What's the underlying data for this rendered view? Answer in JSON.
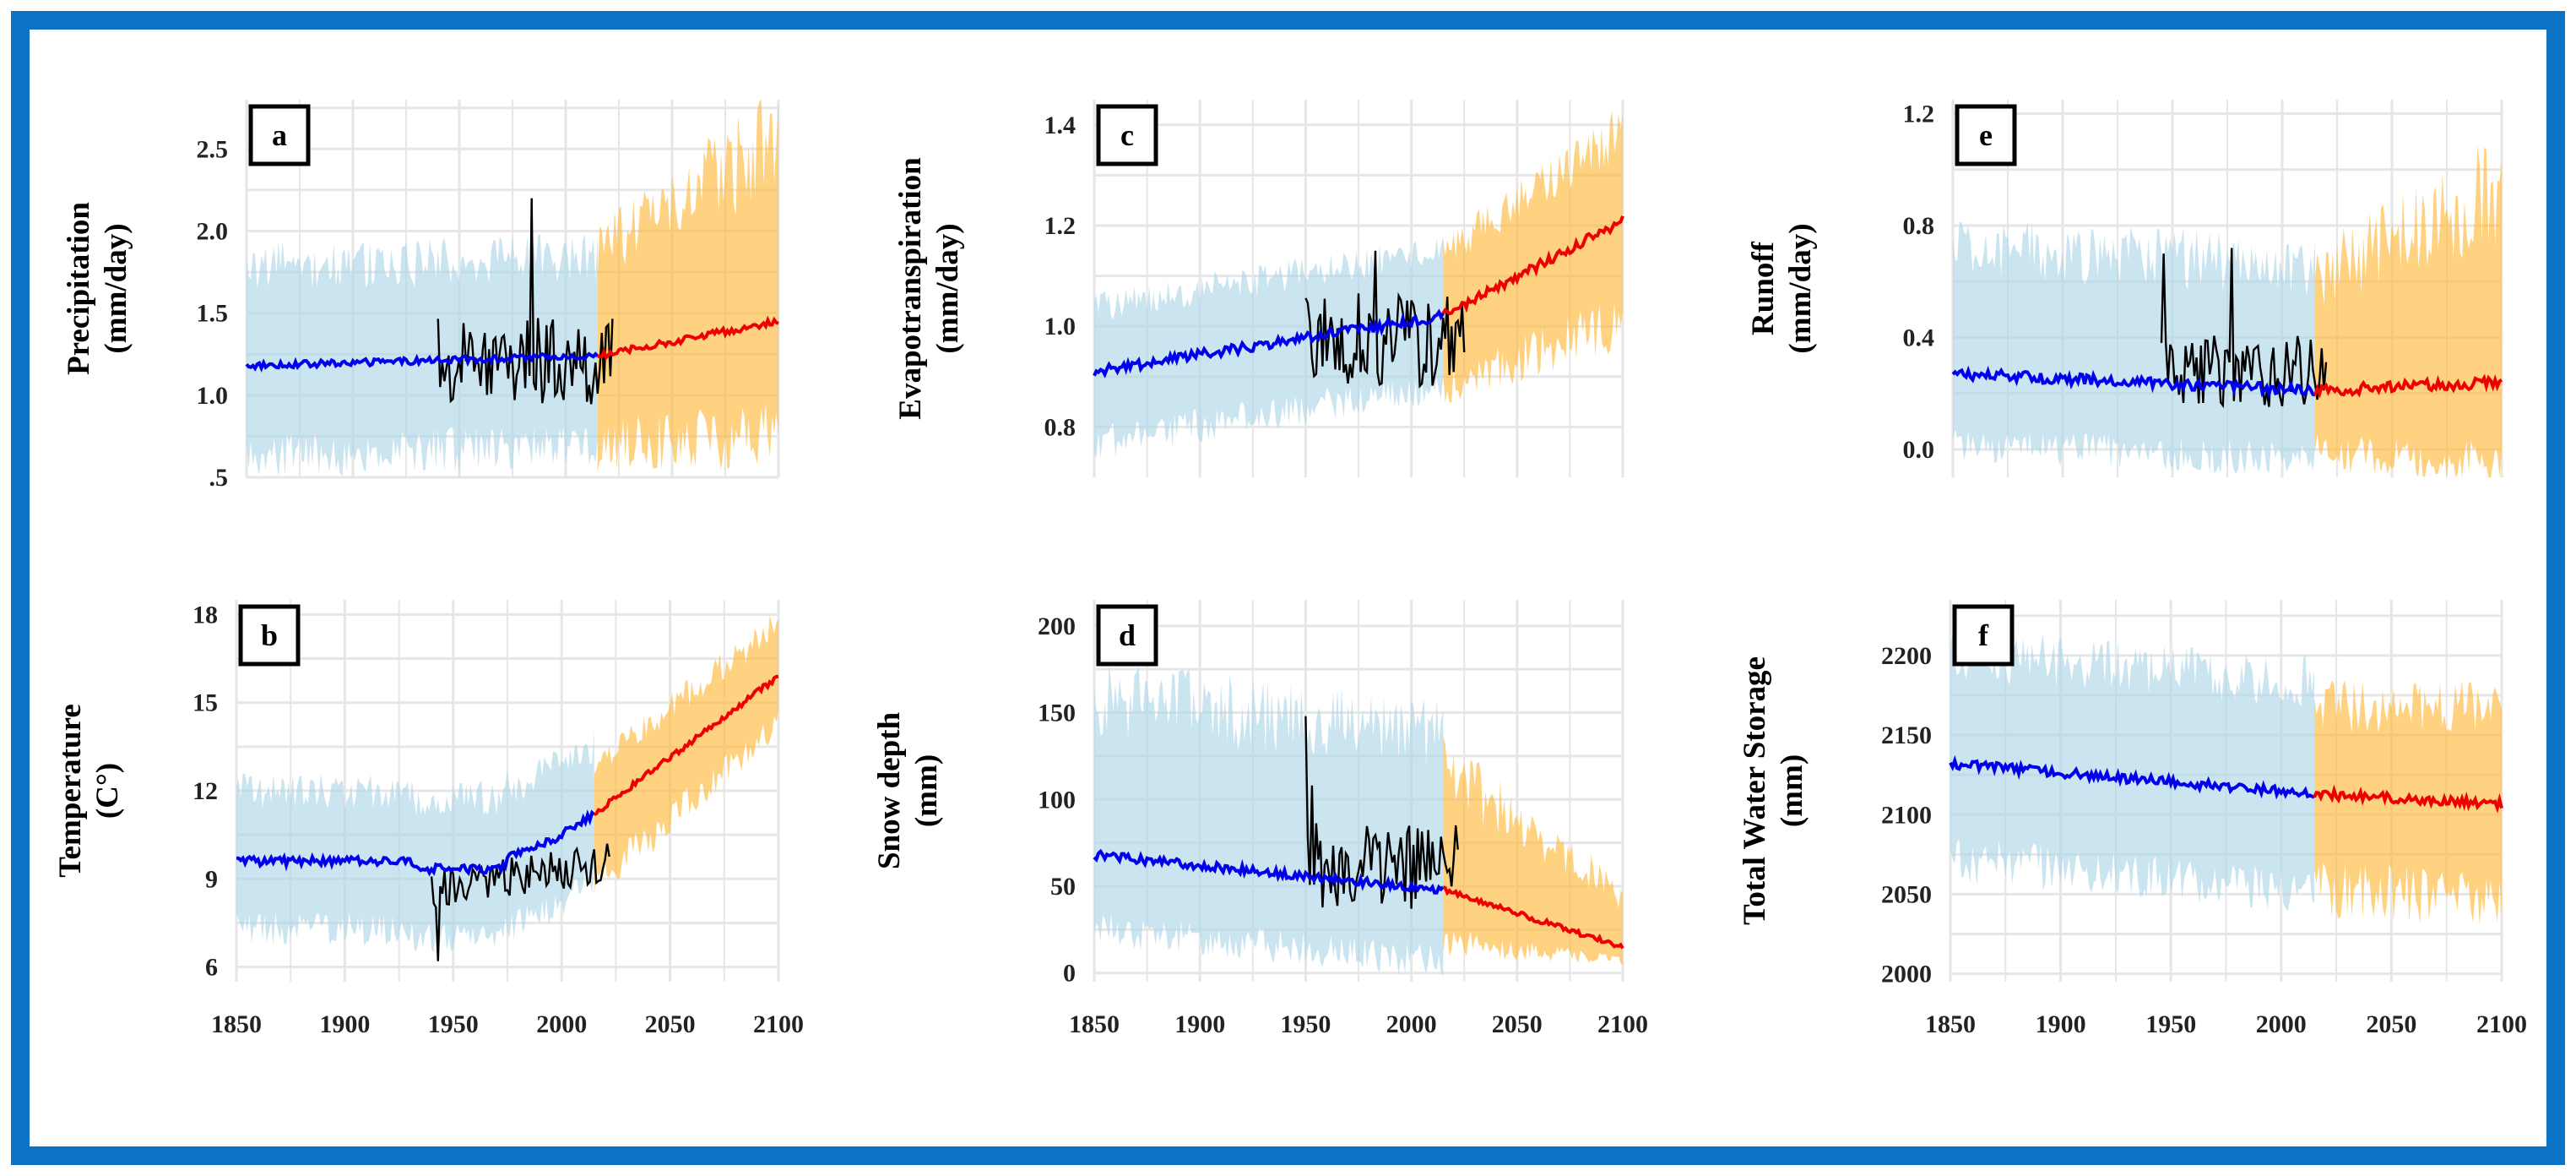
{
  "figure": {
    "frame_color": "#0b72c4",
    "colors": {
      "historical_line": "#0000ee",
      "future_line": "#ee0000",
      "observed_line": "#000000",
      "historical_band": "#a9d4e6",
      "future_band": "#ffb733",
      "grid": "#e6e6e6"
    }
  },
  "chart_data": [
    {
      "id": "a",
      "type": "line",
      "panel_label": "a",
      "ylabel": [
        "Precipitation",
        "(mm/day)"
      ],
      "xlim": [
        1850,
        2100
      ],
      "ylim": [
        0.5,
        2.8
      ],
      "xticks": [],
      "yticks": [
        {
          "v": 0.5,
          "label": ".5"
        },
        {
          "v": 1.0,
          "label": "1.0"
        },
        {
          "v": 1.5,
          "label": "1.5"
        },
        {
          "v": 2.0,
          "label": "2.0"
        },
        {
          "v": 2.5,
          "label": "2.5"
        }
      ],
      "hist": {
        "x0": 1850,
        "x1": 2015,
        "y0": 1.18,
        "y1": 1.24,
        "band_lo": 0.55,
        "band_hi": 0.6,
        "noise": 0.02
      },
      "fut": {
        "x0": 2015,
        "x1": 2100,
        "y0": 1.24,
        "y1": 1.45,
        "band_lo_start": 0.55,
        "band_lo_end": 0.7,
        "band_hi_start": 0.65,
        "band_hi_end": 1.1,
        "noise": 0.02
      },
      "obs": {
        "x0": 1940,
        "x1": 2022,
        "mean": 1.2,
        "amp": 0.28,
        "spikes": [
          [
            1984,
            2.2
          ]
        ]
      }
    },
    {
      "id": "c",
      "type": "line",
      "panel_label": "c",
      "ylabel": [
        "Evapotranspiration",
        "(mm/day)"
      ],
      "xlim": [
        1850,
        2100
      ],
      "ylim": [
        0.7,
        1.45
      ],
      "xticks": [],
      "yticks": [
        {
          "v": 0.8,
          "label": "0.8"
        },
        {
          "v": 1.0,
          "label": "1.0"
        },
        {
          "v": 1.2,
          "label": "1.2"
        },
        {
          "v": 1.4,
          "label": "1.4"
        }
      ],
      "hist": {
        "x0": 1850,
        "x1": 2015,
        "y0": 0.91,
        "y1": 1.02,
        "band_lo": 0.14,
        "band_hi": 0.13,
        "noise": 0.01
      },
      "fut": {
        "x0": 2015,
        "x1": 2100,
        "y0": 1.02,
        "y1": 1.21,
        "band_lo_start": 0.14,
        "band_lo_end": 0.2,
        "band_hi_start": 0.13,
        "band_hi_end": 0.18,
        "noise": 0.01
      },
      "obs": {
        "x0": 1950,
        "x1": 2025,
        "mean": 0.97,
        "amp": 0.1,
        "spikes": [
          [
            1983,
            1.15
          ]
        ]
      }
    },
    {
      "id": "e",
      "type": "line",
      "panel_label": "e",
      "ylabel": [
        "Runoff",
        "(mm/day)"
      ],
      "xlim": [
        1850,
        2100
      ],
      "ylim": [
        -0.1,
        1.25
      ],
      "xticks": [],
      "yticks": [
        {
          "v": 0.0,
          "label": "0.0"
        },
        {
          "v": 0.4,
          "label": "0.4"
        },
        {
          "v": 0.8,
          "label": "0.8"
        },
        {
          "v": 1.2,
          "label": "1.2"
        }
      ],
      "hist": {
        "x0": 1850,
        "x1": 2015,
        "y0": 0.27,
        "y1": 0.21,
        "band_lo": 0.25,
        "band_hi": 0.45,
        "noise": 0.02
      },
      "fut": {
        "x0": 2015,
        "x1": 2100,
        "y0": 0.21,
        "y1": 0.24,
        "band_lo_start": 0.22,
        "band_lo_end": 0.3,
        "band_hi_start": 0.4,
        "band_hi_end": 0.7,
        "noise": 0.02
      },
      "obs": {
        "x0": 1945,
        "x1": 2020,
        "mean": 0.28,
        "amp": 0.13,
        "spikes": [
          [
            1946,
            0.7
          ],
          [
            1977,
            0.72
          ]
        ]
      }
    },
    {
      "id": "b",
      "type": "line",
      "panel_label": "b",
      "ylabel": [
        "Temperature",
        "(C°)"
      ],
      "xlim": [
        1850,
        2100
      ],
      "ylim": [
        5.5,
        18.5
      ],
      "xticks": [
        1850,
        1900,
        1950,
        2000,
        2050,
        2100
      ],
      "yticks": [
        {
          "v": 6,
          "label": "6"
        },
        {
          "v": 9,
          "label": "9"
        },
        {
          "v": 12,
          "label": "12"
        },
        {
          "v": 15,
          "label": "15"
        },
        {
          "v": 18,
          "label": "18"
        }
      ],
      "hist": {
        "x0": 1850,
        "x1": 2015,
        "y0": 9.6,
        "y1": 11.2,
        "band_lo": 2.3,
        "band_hi": 2.4,
        "noise": 0.15,
        "shape": "temp"
      },
      "fut": {
        "x0": 2015,
        "x1": 2100,
        "y0": 11.2,
        "y1": 15.9,
        "band_lo_start": 2.5,
        "band_lo_end": 1.6,
        "band_hi_start": 1.6,
        "band_hi_end": 1.8,
        "noise": 0.1
      },
      "obs": {
        "x0": 1940,
        "x1": 2022,
        "mean": 8.6,
        "amp": 0.7,
        "trend": 1.0,
        "spikes": [
          [
            1943,
            6.2
          ]
        ]
      }
    },
    {
      "id": "d",
      "type": "line",
      "panel_label": "d",
      "ylabel": [
        "Snow depth",
        "(mm)"
      ],
      "xlim": [
        1850,
        2100
      ],
      "ylim": [
        -5,
        215
      ],
      "xticks": [
        1850,
        1900,
        1950,
        2000,
        2050,
        2100
      ],
      "yticks": [
        {
          "v": 0,
          "label": "0"
        },
        {
          "v": 50,
          "label": "50"
        },
        {
          "v": 100,
          "label": "100"
        },
        {
          "v": 150,
          "label": "150"
        },
        {
          "v": 200,
          "label": "200"
        }
      ],
      "hist": {
        "x0": 1850,
        "x1": 2015,
        "y0": 68,
        "y1": 48,
        "band_lo": 42,
        "band_hi": 90,
        "noise": 2.5
      },
      "fut": {
        "x0": 2015,
        "x1": 2100,
        "y0": 48,
        "y1": 15,
        "band_lo_start": 30,
        "band_lo_end": 8,
        "band_hi_start": 70,
        "band_hi_end": 30,
        "noise": 1.5
      },
      "obs": {
        "x0": 1950,
        "x1": 2022,
        "mean": 62,
        "amp": 25,
        "spikes": [
          [
            1950,
            148
          ],
          [
            1953,
            108
          ]
        ]
      }
    },
    {
      "id": "f",
      "type": "line",
      "panel_label": "f",
      "ylabel": [
        "Total Water Storage",
        "(mm)"
      ],
      "xlim": [
        1850,
        2100
      ],
      "ylim": [
        1995,
        2235
      ],
      "xticks": [
        1850,
        1900,
        1950,
        2000,
        2050,
        2100
      ],
      "yticks": [
        {
          "v": 2000,
          "label": "2000"
        },
        {
          "v": 2050,
          "label": "2050"
        },
        {
          "v": 2100,
          "label": "2100"
        },
        {
          "v": 2150,
          "label": "2150"
        },
        {
          "v": 2200,
          "label": "2200"
        }
      ],
      "hist": {
        "x0": 1850,
        "x1": 2015,
        "y0": 2132,
        "y1": 2113,
        "band_lo": 60,
        "band_hi": 70,
        "noise": 3
      },
      "fut": {
        "x0": 2015,
        "x1": 2100,
        "y0": 2113,
        "y1": 2107,
        "band_lo_start": 60,
        "band_lo_end": 60,
        "band_hi_start": 55,
        "band_hi_end": 60,
        "noise": 3
      }
    }
  ]
}
